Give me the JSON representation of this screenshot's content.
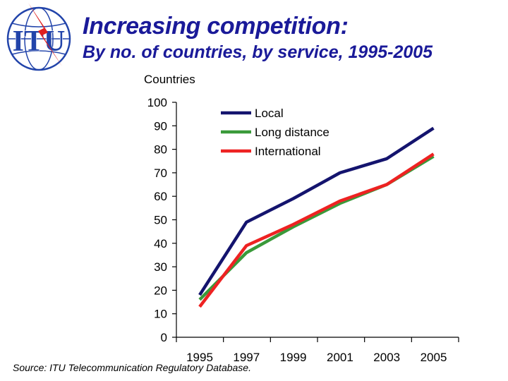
{
  "header": {
    "logo_text": "ITU",
    "title": "Increasing competition:",
    "subtitle": "By no. of countries, by service, 1995-2005"
  },
  "colors": {
    "title": "#1a1a99",
    "local": "#14146e",
    "long_distance": "#3a9a3a",
    "international": "#ee2222",
    "logo_blue": "#2244aa",
    "logo_red": "#e02020"
  },
  "chart_data": {
    "type": "line",
    "title": "",
    "ylabel": "Countries",
    "xlabel": "",
    "ylim": [
      0,
      100
    ],
    "yticks": [
      0,
      10,
      20,
      30,
      40,
      50,
      60,
      70,
      80,
      90,
      100
    ],
    "x": [
      1995,
      1997,
      1999,
      2001,
      2003,
      2005
    ],
    "xtick_labels": [
      "1995",
      "1997",
      "1999",
      "2001",
      "2003",
      "2005"
    ],
    "series": [
      {
        "name": "Local",
        "color": "#14146e",
        "values": [
          18,
          49,
          59,
          70,
          76,
          89
        ]
      },
      {
        "name": "Long distance",
        "color": "#3a9a3a",
        "values": [
          16,
          36,
          47,
          57,
          65,
          77
        ]
      },
      {
        "name": "International",
        "color": "#ee2222",
        "values": [
          13,
          39,
          48,
          58,
          65,
          78
        ]
      }
    ],
    "legend_position": "top-center",
    "grid": false
  },
  "footer": {
    "source": "Source: ITU Telecommunication Regulatory Database."
  }
}
